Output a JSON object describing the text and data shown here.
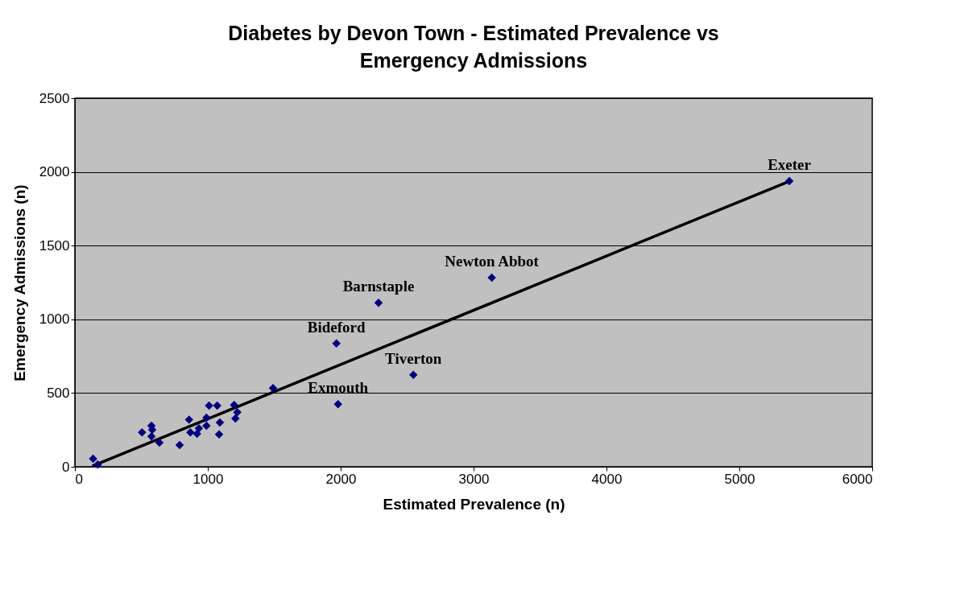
{
  "chart_data": {
    "type": "scatter",
    "title": "Diabetes by Devon Town - Estimated Prevalence vs Emergency Admissions",
    "xlabel": "Estimated Prevalence (n)",
    "ylabel": "Emergency Admissions (n)",
    "xlim": [
      0,
      6000
    ],
    "xticks": [
      0,
      1000,
      2000,
      3000,
      4000,
      5000,
      6000
    ],
    "ylim": [
      0,
      2500
    ],
    "yticks": [
      0,
      500,
      1000,
      1500,
      2000,
      2500
    ],
    "grid": "y",
    "series": [
      {
        "color": "#000080",
        "marker": "diamond",
        "x": [
          137,
          172,
          505,
          576,
          582,
          576,
          636,
          788,
          859,
          869,
          919,
          933,
          990,
          990,
          1010,
          1071,
          1091,
          1085,
          1198,
          1208,
          1222,
          1491,
          1980,
          1968,
          2285,
          2547,
          3137,
          5376
        ],
        "values": [
          55,
          15,
          233,
          278,
          251,
          206,
          164,
          147,
          320,
          233,
          224,
          260,
          278,
          333,
          415,
          415,
          300,
          220,
          419,
          328,
          370,
          533,
          424,
          837,
          1112,
          624,
          1283,
          1938
        ]
      },
      {
        "type": "line",
        "marker": "none",
        "line_style": "solid",
        "color": "#000000",
        "x": [
          131,
          5364
        ],
        "values": [
          5,
          1932
        ]
      }
    ],
    "annotations": [
      {
        "text": "Exeter",
        "x": 5376,
        "y": 1938
      },
      {
        "text": "Newton Abbot",
        "x": 3137,
        "y": 1283
      },
      {
        "text": "Barnstaple",
        "x": 2285,
        "y": 1112
      },
      {
        "text": "Bideford",
        "x": 1968,
        "y": 837
      },
      {
        "text": "Tiverton",
        "x": 2547,
        "y": 624
      },
      {
        "text": "Exmouth",
        "x": 1980,
        "y": 424
      }
    ]
  }
}
